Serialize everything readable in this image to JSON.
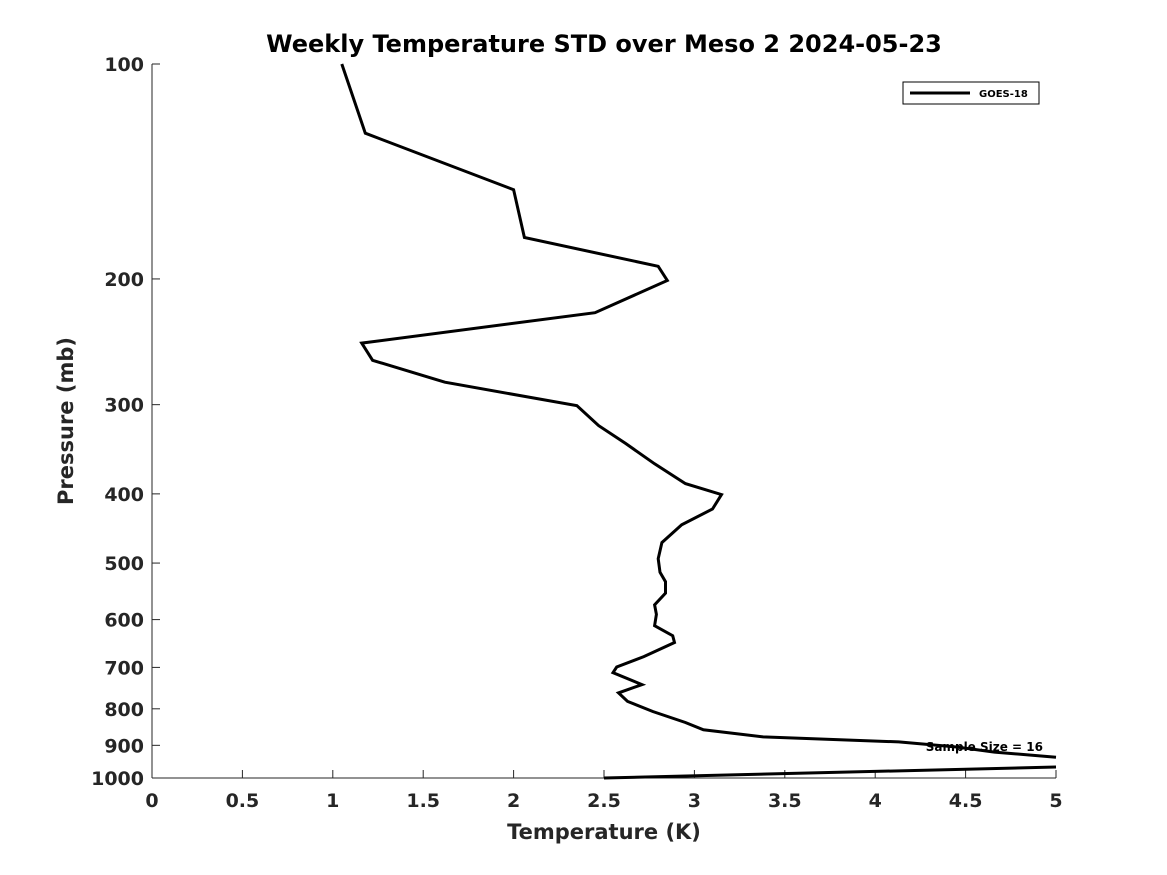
{
  "chart_data": {
    "type": "line",
    "title": "Weekly Temperature STD over Meso 2 2024-05-23",
    "xlabel": "Temperature (K)",
    "ylabel": "Pressure (mb)",
    "xlim": [
      0,
      5
    ],
    "ylim": [
      100,
      1000
    ],
    "y_scale": "log",
    "y_reversed": true,
    "grid": false,
    "legend_position": "top-right",
    "x_ticks": [
      "0",
      "0.5",
      "1",
      "1.5",
      "2",
      "2.5",
      "3",
      "3.5",
      "4",
      "4.5",
      "5"
    ],
    "x_tick_values": [
      0,
      0.5,
      1,
      1.5,
      2,
      2.5,
      3,
      3.5,
      4,
      4.5,
      5
    ],
    "y_ticks": [
      "100",
      "200",
      "300",
      "400",
      "500",
      "600",
      "700",
      "800",
      "900",
      "1000"
    ],
    "y_tick_values": [
      100,
      200,
      300,
      400,
      500,
      600,
      700,
      800,
      900,
      1000
    ],
    "annotation": "Sample Size = 16",
    "series": [
      {
        "name": "GOES-18",
        "color": "#000000",
        "points": [
          [
            1.05,
            100
          ],
          [
            1.18,
            125
          ],
          [
            2.0,
            150
          ],
          [
            2.06,
            175
          ],
          [
            2.8,
            192
          ],
          [
            2.85,
            201
          ],
          [
            2.45,
            223
          ],
          [
            1.16,
            246
          ],
          [
            1.22,
            260
          ],
          [
            1.62,
            279
          ],
          [
            2.35,
            301
          ],
          [
            2.47,
            321
          ],
          [
            2.62,
            340
          ],
          [
            2.78,
            363
          ],
          [
            2.95,
            387
          ],
          [
            3.15,
            401
          ],
          [
            3.1,
            420
          ],
          [
            2.93,
            442
          ],
          [
            2.82,
            468
          ],
          [
            2.8,
            493
          ],
          [
            2.81,
            515
          ],
          [
            2.84,
            531
          ],
          [
            2.84,
            551
          ],
          [
            2.78,
            572
          ],
          [
            2.79,
            590
          ],
          [
            2.78,
            612
          ],
          [
            2.88,
            632
          ],
          [
            2.89,
            646
          ],
          [
            2.72,
            676
          ],
          [
            2.57,
            699
          ],
          [
            2.55,
            712
          ],
          [
            2.71,
            740
          ],
          [
            2.58,
            760
          ],
          [
            2.63,
            781
          ],
          [
            2.77,
            807
          ],
          [
            2.95,
            836
          ],
          [
            3.05,
            856
          ],
          [
            3.38,
            876
          ],
          [
            4.13,
            890
          ],
          [
            4.45,
            905
          ],
          [
            4.66,
            920
          ],
          [
            5.0,
            935
          ]
        ],
        "tail_points": [
          [
            5.0,
            965
          ],
          [
            2.5,
            1000
          ]
        ]
      }
    ]
  }
}
